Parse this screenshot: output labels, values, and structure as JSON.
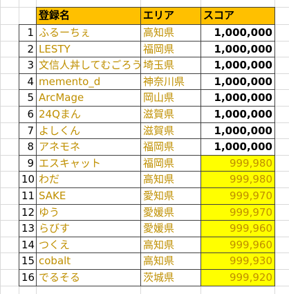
{
  "table": {
    "header": [
      "登録名",
      "エリア",
      "スコア"
    ],
    "rows": [
      {
        "no": 1,
        "name": "ふるーちぇ",
        "area": "高知県",
        "score": "1,000,000"
      },
      {
        "no": 2,
        "name": "LESTY",
        "area": "福岡県",
        "score": "1,000,000"
      },
      {
        "no": 3,
        "name": "文信人丼してむごろう",
        "area": "埼玉県",
        "score": "1,000,000"
      },
      {
        "no": 4,
        "name": "memento_d",
        "area": "神奈川県",
        "score": "1,000,000"
      },
      {
        "no": 5,
        "name": "ArcMage",
        "area": "岡山県",
        "score": "1,000,000"
      },
      {
        "no": 6,
        "name": "24Qまん",
        "area": "滋賀県",
        "score": "1,000,000"
      },
      {
        "no": 7,
        "name": "よしくん",
        "area": "滋賀県",
        "score": "1,000,000"
      },
      {
        "no": 8,
        "name": "アネモネ",
        "area": "福岡県",
        "score": "1,000,000"
      },
      {
        "no": 9,
        "name": "エスキャット",
        "area": "福岡県",
        "score": "999,980"
      },
      {
        "no": 10,
        "name": "わだ",
        "area": "高知県",
        "score": "999,980"
      },
      {
        "no": 11,
        "name": "SAKE",
        "area": "愛知県",
        "score": "999,970"
      },
      {
        "no": 12,
        "name": "ゆう",
        "area": "愛媛県",
        "score": "999,970"
      },
      {
        "no": 13,
        "name": "らびす",
        "area": "愛媛県",
        "score": "999,960"
      },
      {
        "no": 14,
        "name": "つくえ",
        "area": "高知県",
        "score": "999,960"
      },
      {
        "no": 15,
        "name": "cobalt",
        "area": "高知県",
        "score": "999,930"
      },
      {
        "no": 16,
        "name": "でるそる",
        "area": "茨城県",
        "score": "999,920"
      }
    ]
  }
}
